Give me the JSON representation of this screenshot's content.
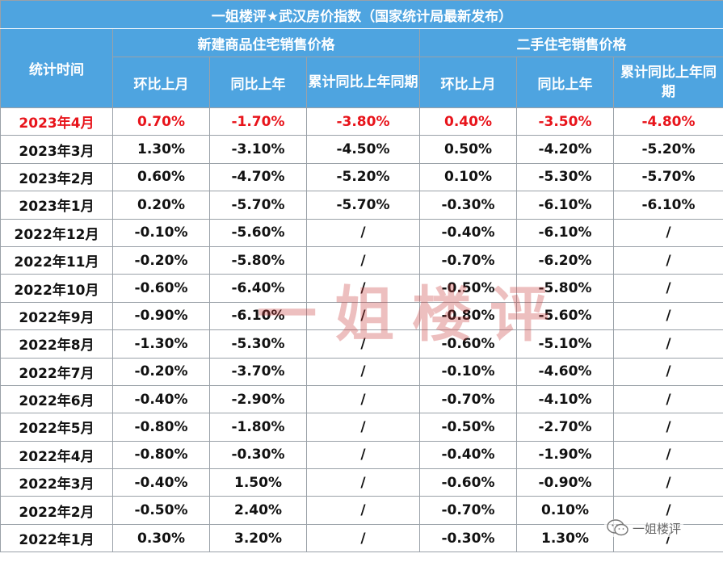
{
  "title": "一姐楼评★武汉房价指数（国家统计局最新发布）",
  "header": {
    "time_label": "统计时间",
    "group_new": "新建商品住宅销售价格",
    "group_second": "二手住宅销售价格",
    "new_cols": [
      "环比上月",
      "同比上年",
      "累计同比上年同期"
    ],
    "second_cols": [
      "环比上月",
      "同比上年",
      "累计同比上年同期"
    ]
  },
  "rows": [
    {
      "month": "2023年4月",
      "new_mom": "0.70%",
      "new_yoy": "-1.70%",
      "new_cum": "-3.80%",
      "sec_mom": "0.40%",
      "sec_yoy": "-3.50%",
      "sec_cum": "-4.80%"
    },
    {
      "month": "2023年3月",
      "new_mom": "1.30%",
      "new_yoy": "-3.10%",
      "new_cum": "-4.50%",
      "sec_mom": "0.50%",
      "sec_yoy": "-4.20%",
      "sec_cum": "-5.20%"
    },
    {
      "month": "2023年2月",
      "new_mom": "0.60%",
      "new_yoy": "-4.70%",
      "new_cum": "-5.20%",
      "sec_mom": "0.10%",
      "sec_yoy": "-5.30%",
      "sec_cum": "-5.70%"
    },
    {
      "month": "2023年1月",
      "new_mom": "0.20%",
      "new_yoy": "-5.70%",
      "new_cum": "-5.70%",
      "sec_mom": "-0.30%",
      "sec_yoy": "-6.10%",
      "sec_cum": "-6.10%"
    },
    {
      "month": "2022年12月",
      "new_mom": "-0.10%",
      "new_yoy": "-5.60%",
      "new_cum": "/",
      "sec_mom": "-0.40%",
      "sec_yoy": "-6.10%",
      "sec_cum": "/"
    },
    {
      "month": "2022年11月",
      "new_mom": "-0.20%",
      "new_yoy": "-5.80%",
      "new_cum": "/",
      "sec_mom": "-0.70%",
      "sec_yoy": "-6.20%",
      "sec_cum": "/"
    },
    {
      "month": "2022年10月",
      "new_mom": "-0.60%",
      "new_yoy": "-6.40%",
      "new_cum": "/",
      "sec_mom": "-0.50%",
      "sec_yoy": "-5.80%",
      "sec_cum": "/"
    },
    {
      "month": "2022年9月",
      "new_mom": "-0.90%",
      "new_yoy": "-6.10%",
      "new_cum": "/",
      "sec_mom": "-0.80%",
      "sec_yoy": "-5.60%",
      "sec_cum": "/"
    },
    {
      "month": "2022年8月",
      "new_mom": "-1.30%",
      "new_yoy": "-5.30%",
      "new_cum": "/",
      "sec_mom": "-0.60%",
      "sec_yoy": "-5.10%",
      "sec_cum": "/"
    },
    {
      "month": "2022年7月",
      "new_mom": "-0.20%",
      "new_yoy": "-3.70%",
      "new_cum": "/",
      "sec_mom": "-0.10%",
      "sec_yoy": "-4.60%",
      "sec_cum": "/"
    },
    {
      "month": "2022年6月",
      "new_mom": "-0.40%",
      "new_yoy": "-2.90%",
      "new_cum": "/",
      "sec_mom": "-0.70%",
      "sec_yoy": "-4.10%",
      "sec_cum": "/"
    },
    {
      "month": "2022年5月",
      "new_mom": "-0.80%",
      "new_yoy": "-1.80%",
      "new_cum": "/",
      "sec_mom": "-0.50%",
      "sec_yoy": "-2.70%",
      "sec_cum": "/"
    },
    {
      "month": "2022年4月",
      "new_mom": "-0.80%",
      "new_yoy": "-0.30%",
      "new_cum": "/",
      "sec_mom": "-0.40%",
      "sec_yoy": "-1.90%",
      "sec_cum": "/"
    },
    {
      "month": "2022年3月",
      "new_mom": "-0.40%",
      "new_yoy": "1.50%",
      "new_cum": "/",
      "sec_mom": "-0.60%",
      "sec_yoy": "-0.90%",
      "sec_cum": "/"
    },
    {
      "month": "2022年2月",
      "new_mom": "-0.50%",
      "new_yoy": "2.40%",
      "new_cum": "/",
      "sec_mom": "-0.70%",
      "sec_yoy": "0.10%",
      "sec_cum": "/"
    },
    {
      "month": "2022年1月",
      "new_mom": "0.30%",
      "new_yoy": "3.20%",
      "new_cum": "/",
      "sec_mom": "-0.30%",
      "sec_yoy": "1.30%",
      "sec_cum": "/"
    }
  ],
  "highlight_color": "#e8141b",
  "header_color": "#4ea4e0",
  "watermark": "一姐楼评",
  "wechat_label": "一姐楼评"
}
